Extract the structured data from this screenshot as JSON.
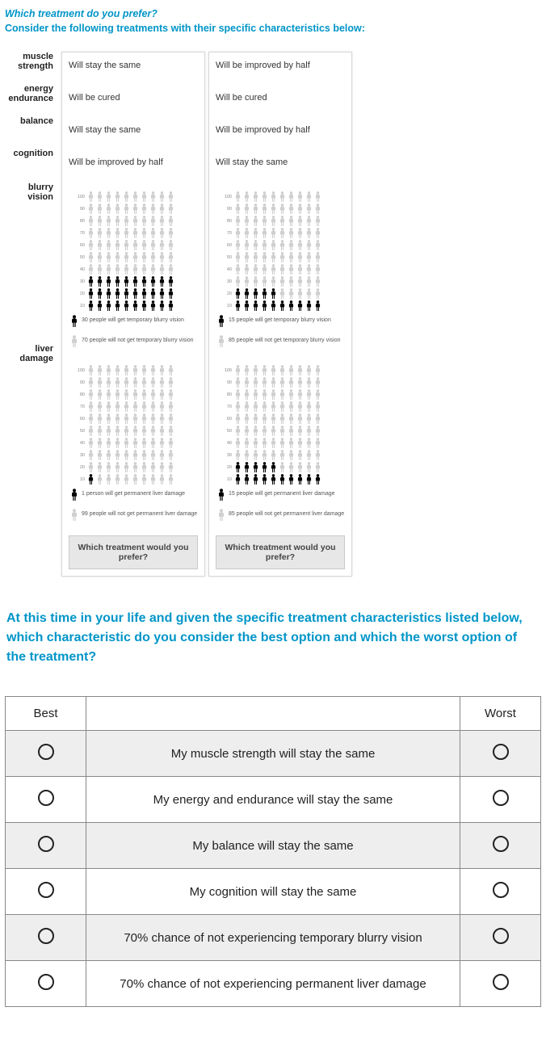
{
  "intro": {
    "question": "Which treatment do you prefer?",
    "sub": "Consider the following treatments with their specific characteristics below:"
  },
  "attributes": [
    {
      "key": "muscle_strength",
      "label": "muscle strength"
    },
    {
      "key": "energy_endurance",
      "label": "energy endurance"
    },
    {
      "key": "balance",
      "label": "balance"
    },
    {
      "key": "cognition",
      "label": "cognition"
    }
  ],
  "treatments": {
    "A": {
      "muscle_strength": "Will stay the same",
      "energy_endurance": "Will be cured",
      "balance": "Will stay the same",
      "cognition": "Will be improved by half"
    },
    "B": {
      "muscle_strength": "Will be improved by half",
      "energy_endurance": "Will be cured",
      "balance": "Will be improved by half",
      "cognition": "Will stay the same"
    }
  },
  "risk_sections": [
    {
      "key": "blurry_vision",
      "label": "blurry vision",
      "A": {
        "affected": 30,
        "total": 100,
        "affected_text": "30 people will get temporary blurry vision",
        "unaffected_text": "70 people will not get temporary blurry vision"
      },
      "B": {
        "affected": 15,
        "total": 100,
        "affected_text": "15 people will get temporary blurry vision",
        "unaffected_text": "85 people will not get temporary blurry vision"
      }
    },
    {
      "key": "liver_damage",
      "label": "liver damage",
      "A": {
        "affected": 1,
        "total": 100,
        "affected_text": "1 person will get permanent liver damage",
        "unaffected_text": "99 people will not get permanent liver damage"
      },
      "B": {
        "affected": 15,
        "total": 100,
        "affected_text": "15 people will get permanent liver damage",
        "unaffected_text": "85 people will not get permanent liver damage"
      }
    }
  ],
  "pictograph": {
    "rows": 10,
    "cols": 10,
    "axis_labels": [
      "100",
      "90",
      "80",
      "70",
      "60",
      "50",
      "40",
      "30",
      "20",
      "10"
    ],
    "affected_color": "#000000",
    "unaffected_color": "#cfcfcf"
  },
  "prefer_button": "Which treatment would you prefer?",
  "q2": "At this time in your life and given the specific treatment characteristics listed below, which characteristic do you consider the best option and which the worst option of the treatment?",
  "bw_table": {
    "headers": {
      "best": "Best",
      "worst": "Worst"
    },
    "rows": [
      "My muscle strength will stay the same",
      "My energy and endurance will stay the same",
      "My balance will stay the same",
      "My cognition will stay the same",
      "70% chance of not experiencing temporary blurry vision",
      "70% chance of not experiencing permanent liver damage"
    ],
    "shaded_rows": [
      0,
      2,
      4
    ]
  },
  "colors": {
    "accent": "#0095c8",
    "card_border": "#d9d9d9",
    "button_bg": "#e7e7e7",
    "table_border": "#888888",
    "table_shade": "#eeeeee"
  }
}
